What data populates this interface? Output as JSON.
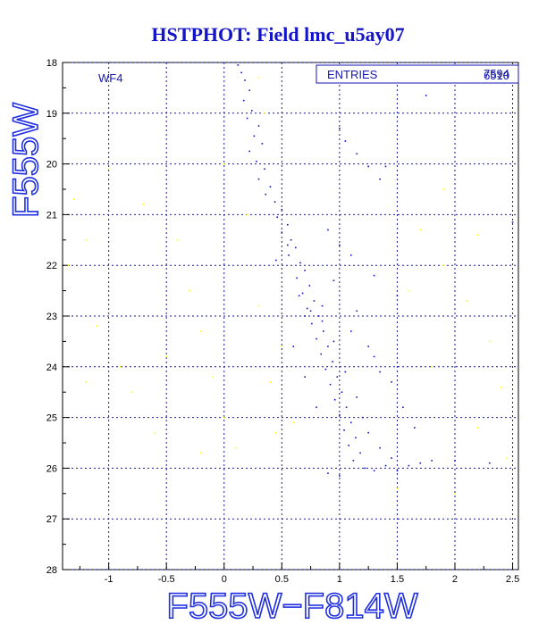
{
  "chart_data": {
    "type": "scatter",
    "title": "HSTPHOT: Field lmc_u5ay07",
    "xlabel": "F555W−F814W",
    "ylabel": "F555W",
    "xlim": [
      -1.4,
      2.55
    ],
    "ylim": [
      28,
      18
    ],
    "y_inverted": true,
    "grid": true,
    "grid_style": "dashed",
    "xticks": [
      -1,
      -0.5,
      0,
      0.5,
      1,
      1.5,
      2,
      2.5
    ],
    "yticks": [
      18,
      19,
      20,
      21,
      22,
      23,
      24,
      25,
      26,
      27,
      28
    ],
    "panel_label": "WF4",
    "stats": {
      "label": "ENTRIES",
      "values": [
        "7594",
        "6510"
      ]
    },
    "colors": {
      "title": "#1414c8",
      "axis_title": "#1f2fe0",
      "text": "#1616b0",
      "primary": "#1010c8",
      "secondary": "#ffff00"
    },
    "series": [
      {
        "color": "#1010c8",
        "points": [
          [
            0.12,
            18.05
          ],
          [
            0.15,
            18.2
          ],
          [
            0.18,
            18.35
          ],
          [
            0.22,
            18.55
          ],
          [
            0.17,
            18.75
          ],
          [
            0.24,
            18.95
          ],
          [
            0.2,
            19.1
          ],
          [
            0.3,
            19.25
          ],
          [
            0.26,
            19.45
          ],
          [
            0.33,
            19.6
          ],
          [
            0.22,
            19.75
          ],
          [
            0.28,
            19.95
          ],
          [
            0.35,
            20.1
          ],
          [
            0.3,
            20.3
          ],
          [
            0.4,
            20.45
          ],
          [
            0.36,
            20.6
          ],
          [
            0.44,
            20.75
          ],
          [
            0.5,
            20.9
          ],
          [
            0.46,
            21.05
          ],
          [
            0.55,
            21.2
          ],
          [
            0.5,
            21.35
          ],
          [
            0.58,
            21.5
          ],
          [
            0.62,
            21.65
          ],
          [
            0.56,
            21.8
          ],
          [
            0.66,
            21.95
          ],
          [
            0.7,
            22.1
          ],
          [
            0.63,
            22.25
          ],
          [
            0.74,
            22.4
          ],
          [
            0.68,
            22.55
          ],
          [
            0.78,
            22.7
          ],
          [
            0.72,
            22.85
          ],
          [
            0.82,
            23.0
          ],
          [
            0.76,
            23.15
          ],
          [
            0.86,
            23.3
          ],
          [
            0.8,
            23.45
          ],
          [
            0.9,
            23.6
          ],
          [
            0.84,
            23.75
          ],
          [
            0.94,
            23.9
          ],
          [
            0.88,
            24.05
          ],
          [
            0.98,
            24.2
          ],
          [
            0.92,
            24.35
          ],
          [
            1.02,
            24.5
          ],
          [
            0.96,
            24.65
          ],
          [
            1.06,
            24.8
          ],
          [
            1.0,
            24.95
          ],
          [
            1.1,
            25.1
          ],
          [
            1.04,
            25.25
          ],
          [
            1.14,
            25.4
          ],
          [
            1.08,
            25.55
          ],
          [
            1.18,
            25.7
          ],
          [
            1.12,
            25.85
          ],
          [
            1.22,
            26.0
          ],
          [
            1.3,
            26.05
          ],
          [
            1.4,
            25.95
          ],
          [
            1.5,
            26.05
          ],
          [
            1.6,
            25.95
          ],
          [
            1.7,
            25.9
          ],
          [
            1.8,
            25.85
          ],
          [
            0.9,
            26.1
          ],
          [
            1.0,
            26.15
          ],
          [
            0.75,
            22.9
          ],
          [
            0.85,
            23.1
          ],
          [
            0.95,
            23.5
          ],
          [
            1.05,
            24.1
          ],
          [
            1.15,
            24.6
          ],
          [
            1.2,
            25.0
          ],
          [
            1.25,
            25.3
          ],
          [
            1.35,
            25.6
          ],
          [
            1.45,
            25.8
          ],
          [
            0.65,
            22.6
          ],
          [
            0.7,
            23.0
          ],
          [
            1.0,
            19.3
          ],
          [
            1.05,
            19.55
          ],
          [
            1.15,
            19.8
          ],
          [
            1.25,
            20.05
          ],
          [
            1.35,
            20.3
          ],
          [
            1.4,
            20.05
          ],
          [
            0.9,
            21.3
          ],
          [
            1.0,
            21.6
          ],
          [
            1.1,
            21.8
          ],
          [
            1.3,
            22.2
          ],
          [
            1.5,
            22.6
          ],
          [
            1.1,
            23.3
          ],
          [
            1.3,
            23.8
          ],
          [
            1.45,
            24.3
          ],
          [
            1.55,
            24.8
          ],
          [
            1.65,
            25.2
          ],
          [
            0.6,
            23.6
          ],
          [
            0.7,
            24.2
          ],
          [
            0.8,
            24.8
          ],
          [
            2.0,
            25.85
          ],
          [
            2.3,
            25.9
          ],
          [
            1.75,
            18.65
          ],
          [
            2.5,
            21.15
          ],
          [
            0.45,
            21.9
          ],
          [
            0.95,
            22.3
          ],
          [
            1.15,
            22.9
          ],
          [
            1.25,
            23.6
          ],
          [
            1.35,
            24.1
          ],
          [
            0.55,
            21.6
          ],
          [
            0.85,
            22.8
          ]
        ]
      },
      {
        "color": "#ffff00",
        "points": [
          [
            -1.3,
            20.7
          ],
          [
            -1.2,
            21.5
          ],
          [
            -1.1,
            23.2
          ],
          [
            -0.9,
            24.0
          ],
          [
            -0.8,
            24.5
          ],
          [
            -0.6,
            25.3
          ],
          [
            -0.4,
            21.5
          ],
          [
            -0.3,
            22.5
          ],
          [
            -0.2,
            23.3
          ],
          [
            -0.1,
            24.2
          ],
          [
            0.0,
            25.0
          ],
          [
            0.1,
            25.6
          ],
          [
            0.2,
            21.0
          ],
          [
            0.3,
            22.8
          ],
          [
            0.4,
            24.3
          ],
          [
            0.5,
            23.6
          ],
          [
            0.6,
            25.1
          ],
          [
            1.7,
            21.3
          ],
          [
            1.9,
            22.0
          ],
          [
            2.1,
            22.7
          ],
          [
            2.3,
            23.5
          ],
          [
            2.4,
            24.4
          ],
          [
            2.2,
            25.2
          ],
          [
            2.0,
            26.5
          ],
          [
            1.8,
            24.0
          ],
          [
            1.6,
            22.5
          ],
          [
            -1.0,
            20.1
          ],
          [
            -0.7,
            20.8
          ],
          [
            0.3,
            18.3
          ],
          [
            1.9,
            20.5
          ],
          [
            -1.35,
            22.0
          ],
          [
            -0.5,
            23.8
          ],
          [
            0.35,
            19.0
          ],
          [
            2.45,
            25.8
          ],
          [
            -0.2,
            25.7
          ],
          [
            0.0,
            20.0
          ],
          [
            -1.2,
            24.3
          ],
          [
            2.2,
            21.4
          ],
          [
            0.45,
            25.3
          ],
          [
            1.5,
            26.4
          ]
        ]
      }
    ]
  }
}
